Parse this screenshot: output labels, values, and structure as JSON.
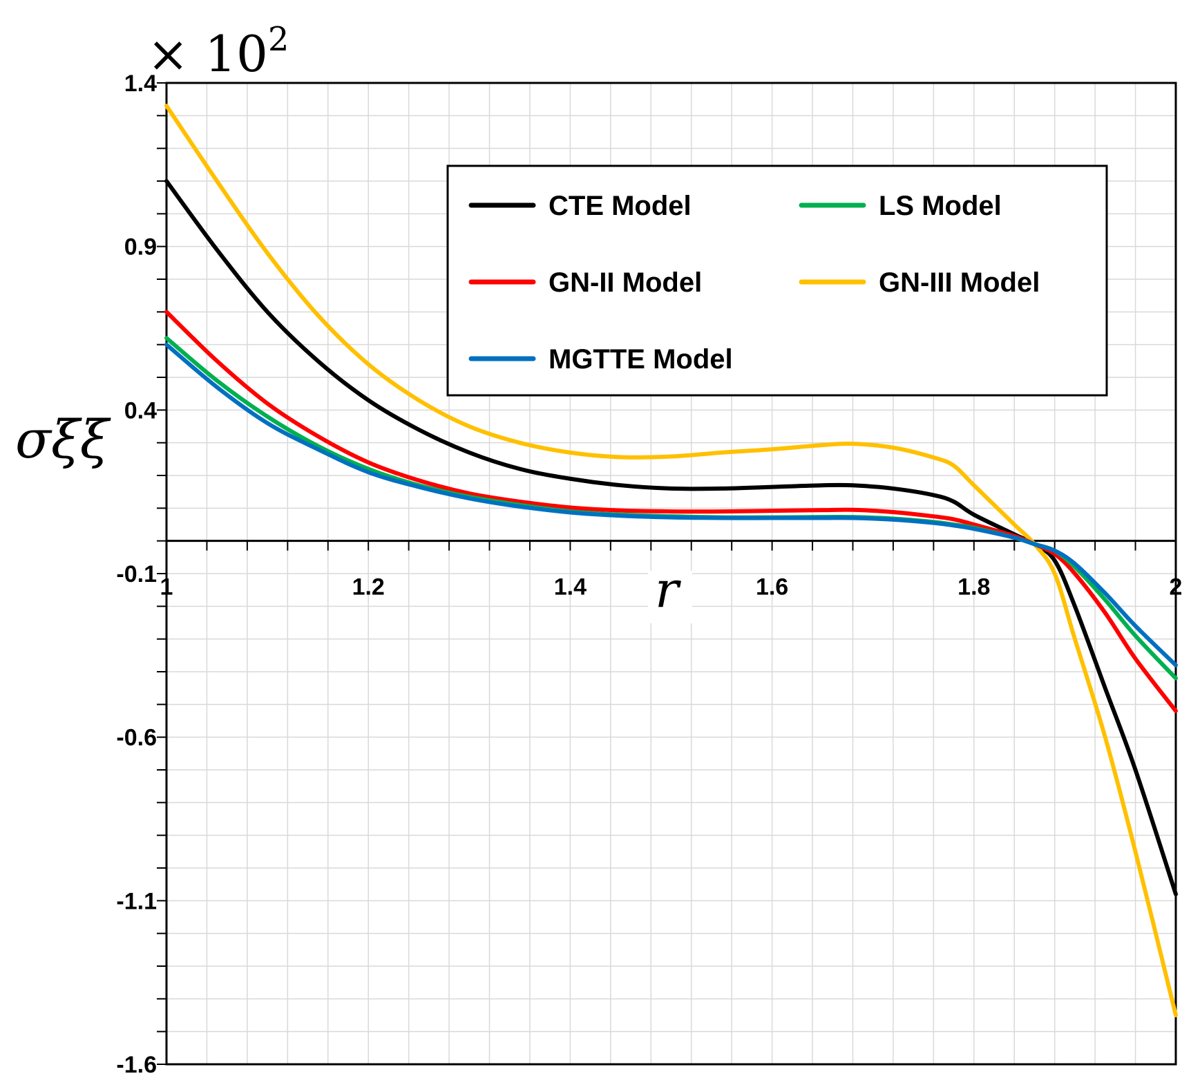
{
  "chart_data": {
    "type": "line",
    "xlabel": "r",
    "ylabel": "σξξ",
    "multiplier_label": "× 10",
    "multiplier_exponent": "2",
    "xlim": [
      1,
      2
    ],
    "ylim": [
      -1.6,
      1.4
    ],
    "x_ticks": [
      1,
      1.2,
      1.4,
      1.6,
      1.8,
      2
    ],
    "x_tick_labels": [
      "1",
      "1.2",
      "1.4",
      "1.6",
      "1.8",
      "2"
    ],
    "y_ticks": [
      1.4,
      0.9,
      0.4,
      -0.1,
      -0.6,
      -1.1,
      -1.6
    ],
    "y_tick_labels": [
      "1.4",
      "0.9",
      "0.4",
      "-0.1",
      "-0.6",
      "-1.1",
      "-1.6"
    ],
    "grid": true,
    "legend_position": "top-right",
    "x": [
      1.0,
      1.05,
      1.1,
      1.15,
      1.2,
      1.25,
      1.3,
      1.35,
      1.4,
      1.45,
      1.5,
      1.55,
      1.6,
      1.65,
      1.68,
      1.72,
      1.76,
      1.78,
      1.8,
      1.84,
      1.86,
      1.88,
      1.9,
      1.93,
      1.96,
      2.0
    ],
    "series": [
      {
        "name": "CTE Model",
        "color": "#000000",
        "values": [
          1.1,
          0.89,
          0.7,
          0.55,
          0.43,
          0.34,
          0.27,
          0.22,
          0.19,
          0.17,
          0.16,
          0.16,
          0.165,
          0.17,
          0.17,
          0.16,
          0.14,
          0.12,
          0.08,
          0.02,
          -0.01,
          -0.06,
          -0.2,
          -0.45,
          -0.7,
          -1.08
        ]
      },
      {
        "name": "LS Model",
        "color": "#00B050",
        "values": [
          0.62,
          0.49,
          0.38,
          0.29,
          0.22,
          0.17,
          0.135,
          0.11,
          0.09,
          0.08,
          0.075,
          0.072,
          0.072,
          0.073,
          0.073,
          0.068,
          0.058,
          0.05,
          0.04,
          0.01,
          -0.01,
          -0.03,
          -0.08,
          -0.18,
          -0.29,
          -0.42
        ]
      },
      {
        "name": "GN-II Model",
        "color": "#FF0000",
        "values": [
          0.7,
          0.55,
          0.42,
          0.32,
          0.24,
          0.185,
          0.145,
          0.12,
          0.102,
          0.093,
          0.09,
          0.09,
          0.092,
          0.094,
          0.095,
          0.088,
          0.075,
          0.066,
          0.05,
          0.015,
          -0.01,
          -0.04,
          -0.1,
          -0.22,
          -0.36,
          -0.52
        ]
      },
      {
        "name": "GN-III Model",
        "color": "#FFC000",
        "values": [
          1.33,
          1.1,
          0.88,
          0.69,
          0.54,
          0.43,
          0.35,
          0.3,
          0.27,
          0.256,
          0.258,
          0.27,
          0.28,
          0.293,
          0.297,
          0.285,
          0.255,
          0.23,
          0.17,
          0.05,
          -0.01,
          -0.1,
          -0.3,
          -0.6,
          -0.95,
          -1.45
        ]
      },
      {
        "name": "MGTTE Model",
        "color": "#0070C0",
        "values": [
          0.6,
          0.47,
          0.36,
          0.28,
          0.21,
          0.165,
          0.13,
          0.105,
          0.087,
          0.077,
          0.072,
          0.07,
          0.07,
          0.07,
          0.07,
          0.065,
          0.055,
          0.047,
          0.037,
          0.01,
          -0.01,
          -0.03,
          -0.07,
          -0.16,
          -0.26,
          -0.38
        ]
      }
    ]
  }
}
